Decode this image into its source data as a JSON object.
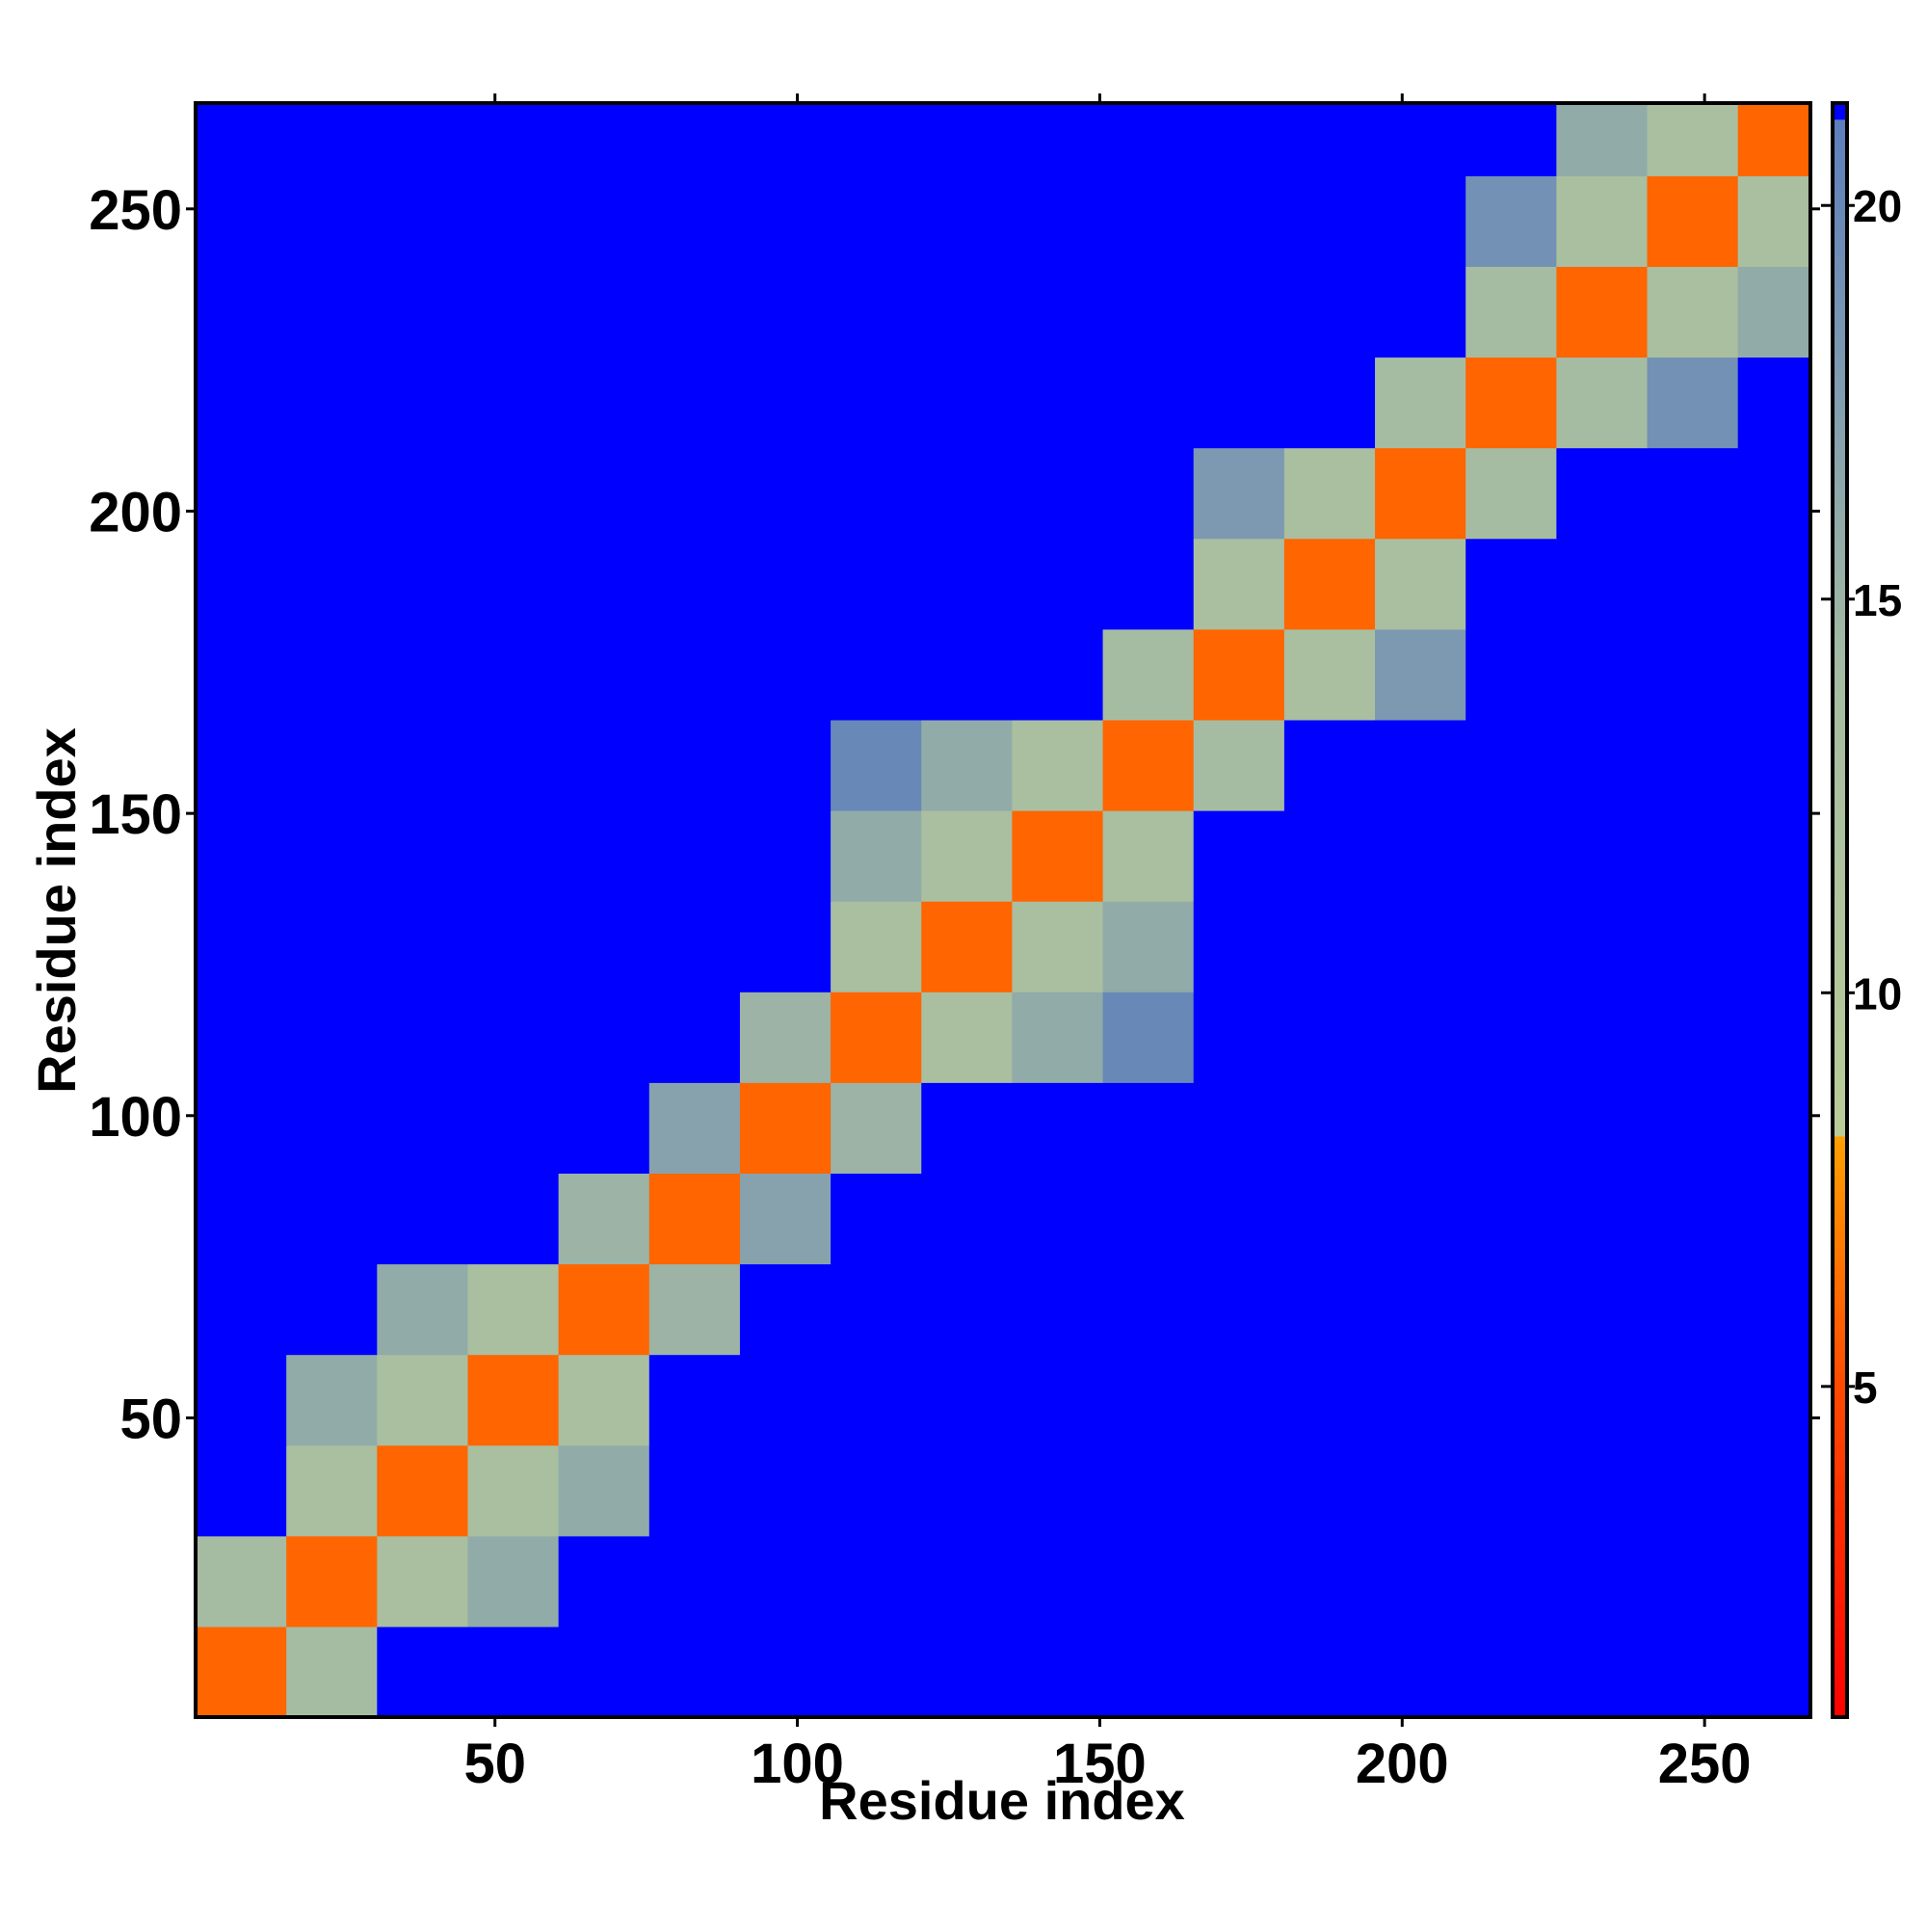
{
  "chart_data": {
    "type": "heatmap",
    "x_label": "Residue index",
    "y_label": "Residue index",
    "x_bins": [
      0.5,
      15.5,
      30.5,
      45.5,
      60.5,
      75.5,
      90.5,
      105.5,
      120.5,
      135.5,
      150.5,
      165.5,
      180.5,
      195.5,
      210.5,
      225.5,
      240.5,
      255.5,
      267.5
    ],
    "y_bins": [
      0.5,
      15.5,
      30.5,
      45.5,
      60.5,
      75.5,
      90.5,
      105.5,
      120.5,
      135.5,
      150.5,
      165.5,
      180.5,
      195.5,
      210.5,
      225.5,
      240.5,
      255.5,
      267.5
    ],
    "z": [
      [
        6,
        14,
        22,
        22,
        22,
        22,
        22,
        22,
        22,
        22,
        22,
        22,
        22,
        22,
        22,
        22,
        22,
        22
      ],
      [
        14,
        6,
        13,
        16,
        22,
        22,
        22,
        22,
        22,
        22,
        22,
        22,
        22,
        22,
        22,
        22,
        22,
        22
      ],
      [
        22,
        13,
        6,
        13,
        16,
        22,
        22,
        22,
        22,
        22,
        22,
        22,
        22,
        22,
        22,
        22,
        22,
        22
      ],
      [
        22,
        16,
        13,
        6,
        13,
        22,
        22,
        22,
        22,
        22,
        22,
        22,
        22,
        22,
        22,
        22,
        22,
        22
      ],
      [
        22,
        22,
        16,
        13,
        6,
        15,
        22,
        22,
        22,
        22,
        22,
        22,
        22,
        22,
        22,
        22,
        22,
        22
      ],
      [
        22,
        22,
        22,
        22,
        15,
        6,
        17,
        22,
        22,
        22,
        22,
        22,
        22,
        22,
        22,
        22,
        22,
        22
      ],
      [
        22,
        22,
        22,
        22,
        22,
        17,
        6,
        15,
        22,
        22,
        22,
        22,
        22,
        22,
        22,
        22,
        22,
        22
      ],
      [
        22,
        22,
        22,
        22,
        22,
        22,
        15,
        6,
        13,
        16,
        20,
        22,
        22,
        22,
        22,
        22,
        22,
        22
      ],
      [
        22,
        22,
        22,
        22,
        22,
        22,
        22,
        13,
        6,
        13,
        16,
        22,
        22,
        22,
        22,
        22,
        22,
        22
      ],
      [
        22,
        22,
        22,
        22,
        22,
        22,
        22,
        16,
        13,
        6,
        13,
        22,
        22,
        22,
        22,
        22,
        22,
        22
      ],
      [
        22,
        22,
        22,
        22,
        22,
        22,
        22,
        20,
        16,
        13,
        6,
        14,
        22,
        22,
        22,
        22,
        22,
        22
      ],
      [
        22,
        22,
        22,
        22,
        22,
        22,
        22,
        22,
        22,
        22,
        14,
        6,
        13,
        18,
        22,
        22,
        22,
        22
      ],
      [
        22,
        22,
        22,
        22,
        22,
        22,
        22,
        22,
        22,
        22,
        22,
        13,
        6,
        13,
        22,
        22,
        22,
        22
      ],
      [
        22,
        22,
        22,
        22,
        22,
        22,
        22,
        22,
        22,
        22,
        22,
        18,
        13,
        6,
        14,
        22,
        22,
        22
      ],
      [
        22,
        22,
        22,
        22,
        22,
        22,
        22,
        22,
        22,
        22,
        22,
        22,
        22,
        14,
        6,
        14,
        19,
        22
      ],
      [
        22,
        22,
        22,
        22,
        22,
        22,
        22,
        22,
        22,
        22,
        22,
        22,
        22,
        22,
        14,
        6,
        13,
        16
      ],
      [
        22,
        22,
        22,
        22,
        22,
        22,
        22,
        22,
        22,
        22,
        22,
        22,
        22,
        22,
        19,
        13,
        6,
        13
      ],
      [
        22,
        22,
        22,
        22,
        22,
        22,
        22,
        22,
        22,
        22,
        22,
        22,
        22,
        22,
        22,
        16,
        13,
        6
      ]
    ],
    "xlim": [
      0.5,
      267.5
    ],
    "ylim": [
      0.5,
      267.5
    ],
    "xticks": [
      50,
      100,
      150,
      200,
      250
    ],
    "yticks": [
      50,
      100,
      150,
      200,
      250
    ],
    "zlim": [
      0.8,
      21.3
    ],
    "zticks": [
      5,
      10,
      15,
      20
    ],
    "colorscale": [
      [
        0.8,
        "#ff0000"
      ],
      [
        5,
        "#ff4a00"
      ],
      [
        8.2,
        "#ffa000"
      ],
      [
        8.2,
        "#b9cc98"
      ],
      [
        14,
        "#a6bca2"
      ],
      [
        21.3,
        "#5b7dbd"
      ]
    ],
    "above_color": "#0000ff"
  }
}
